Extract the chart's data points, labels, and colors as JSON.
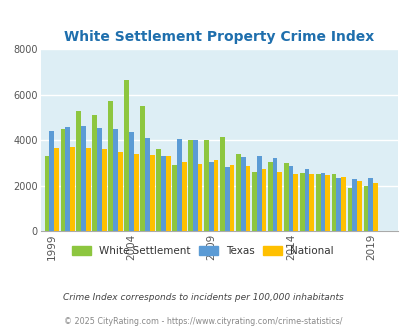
{
  "title": "White Settlement Property Crime Index",
  "years": [
    1999,
    2000,
    2001,
    2002,
    2003,
    2004,
    2005,
    2006,
    2007,
    2008,
    2009,
    2010,
    2011,
    2012,
    2013,
    2014,
    2015,
    2016,
    2017,
    2018,
    2019,
    2020
  ],
  "white_settlement": [
    3300,
    4500,
    5300,
    5100,
    5750,
    6650,
    5500,
    3600,
    2900,
    4000,
    4000,
    4150,
    3400,
    2600,
    3050,
    3000,
    2550,
    2500,
    2500,
    1900,
    2000,
    0
  ],
  "texas": [
    4400,
    4600,
    4650,
    4550,
    4500,
    4350,
    4100,
    3300,
    4050,
    4000,
    3050,
    2800,
    3250,
    3300,
    3200,
    2850,
    2750,
    2550,
    2350,
    2300,
    2350,
    0
  ],
  "national": [
    3650,
    3700,
    3650,
    3600,
    3500,
    3400,
    3350,
    3300,
    3050,
    2950,
    3150,
    2900,
    2850,
    2750,
    2600,
    2500,
    2500,
    2450,
    2400,
    2200,
    2100,
    0
  ],
  "ws_color": "#8dc63f",
  "tx_color": "#5b9bd5",
  "nat_color": "#ffc000",
  "bg_color": "#ddeef5",
  "title_color": "#1f6fad",
  "ylabel_max": 8000,
  "yticks": [
    0,
    2000,
    4000,
    6000,
    8000
  ],
  "xtick_years": [
    1999,
    2004,
    2009,
    2014,
    2019
  ],
  "footer_line1": "Crime Index corresponds to incidents per 100,000 inhabitants",
  "footer_line2": "© 2025 CityRating.com - https://www.cityrating.com/crime-statistics/",
  "legend_labels": [
    "White Settlement",
    "Texas",
    "National"
  ]
}
